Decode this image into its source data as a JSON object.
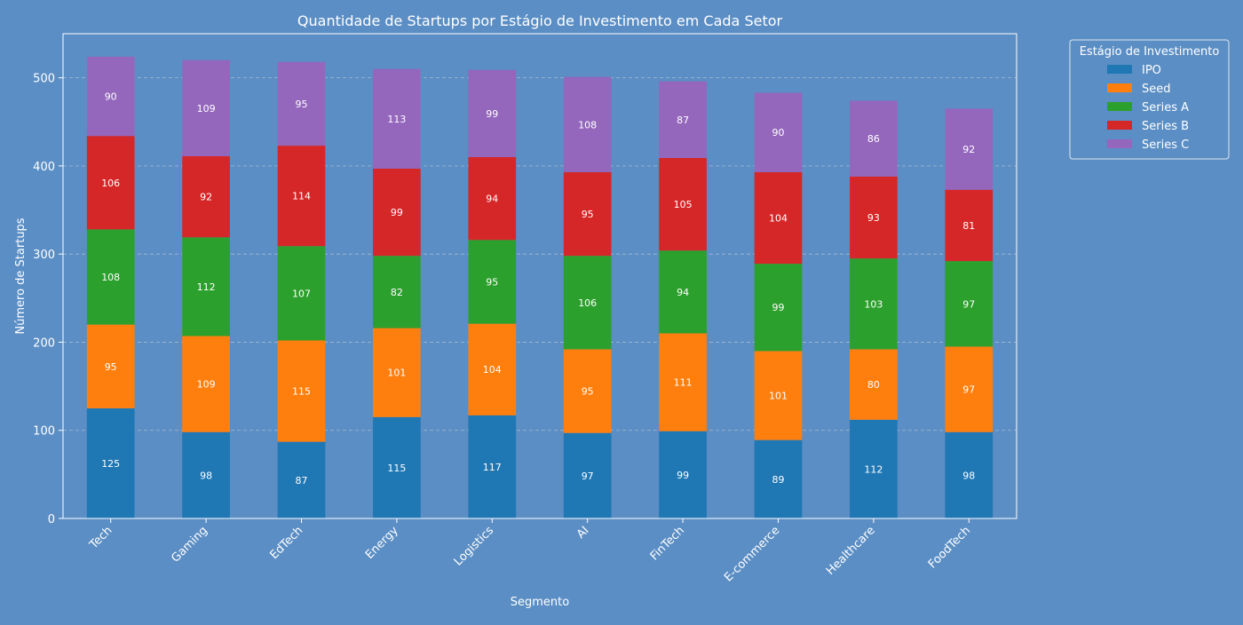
{
  "chart_data": {
    "type": "bar",
    "stacked": true,
    "title": "Quantidade de Startups por Estágio de Investimento em Cada Setor",
    "xlabel": "Segmento",
    "ylabel": "Número de Startups",
    "ylim": [
      0,
      550
    ],
    "yticks": [
      0,
      100,
      200,
      300,
      400,
      500
    ],
    "grid": "horizontal-dashed",
    "categories": [
      "Tech",
      "Gaming",
      "EdTech",
      "Energy",
      "Logistics",
      "AI",
      "FinTech",
      "E-commerce",
      "Healthcare",
      "FoodTech"
    ],
    "series": [
      {
        "name": "IPO",
        "color": "#1f77b4",
        "values": [
          125,
          98,
          87,
          115,
          117,
          97,
          99,
          89,
          112,
          98
        ]
      },
      {
        "name": "Seed",
        "color": "#ff7f0e",
        "values": [
          95,
          109,
          115,
          101,
          104,
          95,
          111,
          101,
          80,
          97
        ]
      },
      {
        "name": "Series A",
        "color": "#2ca02c",
        "values": [
          108,
          112,
          107,
          82,
          95,
          106,
          94,
          99,
          103,
          97
        ]
      },
      {
        "name": "Series B",
        "color": "#d62728",
        "values": [
          106,
          92,
          114,
          99,
          94,
          95,
          105,
          104,
          93,
          81
        ]
      },
      {
        "name": "Series C",
        "color": "#9467bd",
        "values": [
          90,
          109,
          95,
          113,
          99,
          108,
          87,
          90,
          86,
          92
        ]
      }
    ],
    "legend": {
      "title": "Estágio de Investimento",
      "placement": "outside-right-top"
    }
  }
}
